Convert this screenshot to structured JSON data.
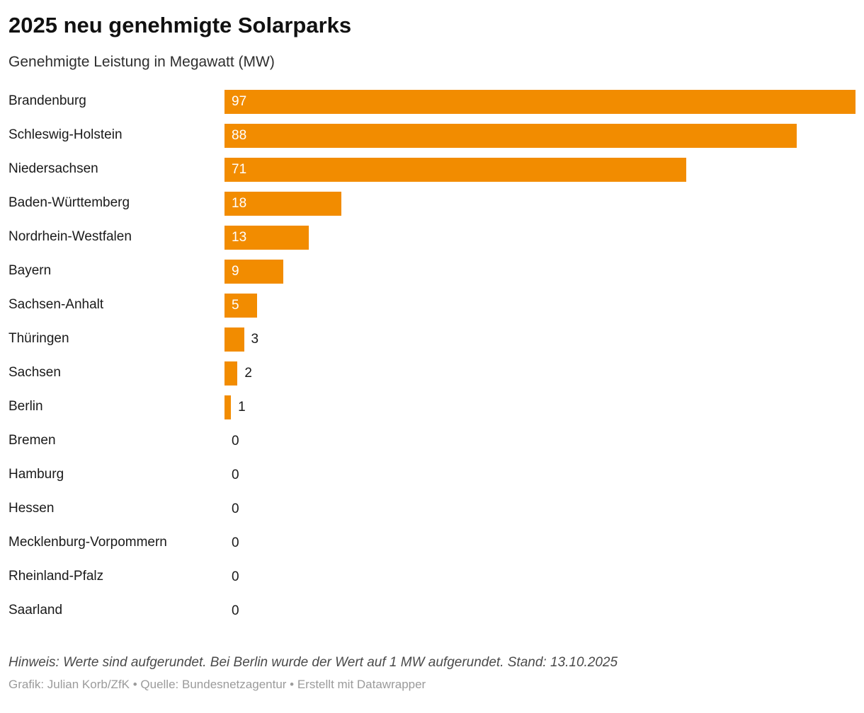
{
  "header": {
    "title": "2025 neu genehmigte Solarparks",
    "subtitle": "Genehmigte Leistung in Megawatt (MW)"
  },
  "chart_data": {
    "type": "bar",
    "orientation": "horizontal",
    "title": "2025 neu genehmigte Solarparks",
    "subtitle": "Genehmigte Leistung in Megawatt (MW)",
    "xlabel": "",
    "ylabel": "",
    "unit": "MW",
    "xlim": [
      0,
      97
    ],
    "max_value": 97,
    "categories": [
      "Brandenburg",
      "Schleswig-Holstein",
      "Niedersachsen",
      "Baden-Württemberg",
      "Nordrhein-Westfalen",
      "Bayern",
      "Sachsen-Anhalt",
      "Thüringen",
      "Sachsen",
      "Berlin",
      "Bremen",
      "Hamburg",
      "Hessen",
      "Mecklenburg-Vorpommern",
      "Rheinland-Pfalz",
      "Saarland"
    ],
    "values": [
      97,
      88,
      71,
      18,
      13,
      9,
      5,
      3,
      2,
      1,
      0,
      0,
      0,
      0,
      0,
      0
    ],
    "bar_color": "#F28C00",
    "value_label_inside_color": "#ffffff",
    "value_label_outside_color": "#1a1a1a",
    "inside_label_min": 5,
    "grid": "off",
    "legend": "none"
  },
  "footer": {
    "note": "Hinweis: Werte sind aufgerundet. Bei Berlin wurde der Wert auf 1 MW aufgerundet. Stand: 13.10.2025",
    "credit": "Grafik: Julian Korb/ZfK • Quelle: Bundesnetzagentur • Erstellt mit Datawrapper"
  }
}
